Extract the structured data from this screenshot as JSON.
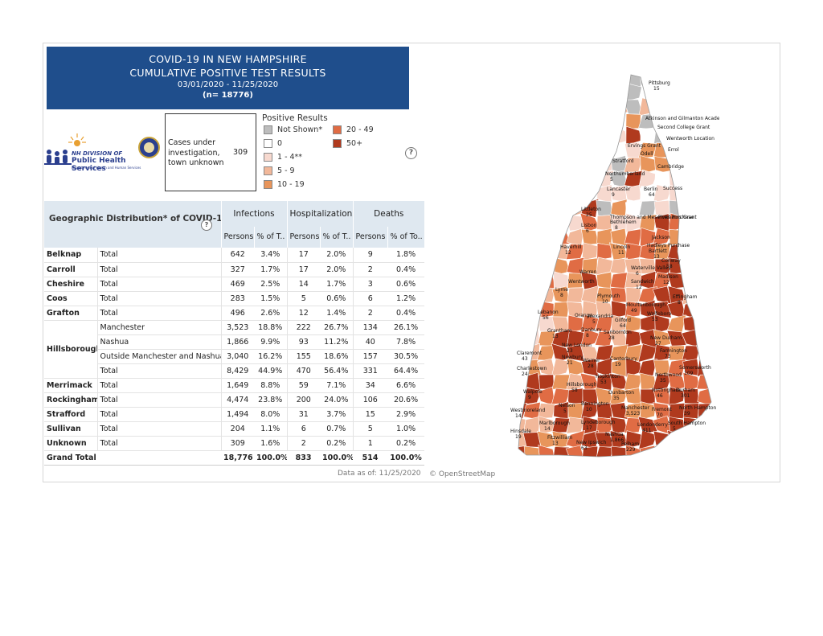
{
  "header": {
    "line1": "COVID-19 IN NEW HAMPSHIRE",
    "line2": "CUMULATIVE POSITIVE TEST RESULTS",
    "dates": "03/01/2020 - 11/25/2020",
    "n": "(n= 18776)"
  },
  "logo": {
    "org1": "NH DIVISION OF",
    "org2": "Public Health Services",
    "org3": "Department of Health and Human Services"
  },
  "cases_box": {
    "label": "Cases under investigation, town unknown",
    "value": "309"
  },
  "legend": {
    "title": "Positive Results",
    "items": [
      {
        "label": "Not Shown*",
        "color": "#bdbdbd"
      },
      {
        "label": "0",
        "color": "#ffffff"
      },
      {
        "label": "1 - 4**",
        "color": "#f7d9cf"
      },
      {
        "label": "5 - 9",
        "color": "#f2b89a"
      },
      {
        "label": "10 - 19",
        "color": "#e8955b"
      },
      {
        "label": "20 - 49",
        "color": "#e06c44"
      },
      {
        "label": "50+",
        "color": "#b03a1e"
      }
    ]
  },
  "help_icon": "?",
  "table": {
    "geo_header": "Geographic Distribution* of COVID-19",
    "groups": [
      "Infections",
      "Hospitalizations",
      "Deaths"
    ],
    "subheaders": [
      "Persons",
      "% of T..",
      "Persons",
      "% of T..",
      "Persons",
      "% of To.."
    ],
    "rows": [
      {
        "region": "Belknap",
        "sub": "Total",
        "v": [
          "642",
          "3.4%",
          "17",
          "2.0%",
          "9",
          "1.8%"
        ]
      },
      {
        "region": "Carroll",
        "sub": "Total",
        "v": [
          "327",
          "1.7%",
          "17",
          "2.0%",
          "2",
          "0.4%"
        ]
      },
      {
        "region": "Cheshire",
        "sub": "Total",
        "v": [
          "469",
          "2.5%",
          "14",
          "1.7%",
          "3",
          "0.6%"
        ]
      },
      {
        "region": "Coos",
        "sub": "Total",
        "v": [
          "283",
          "1.5%",
          "5",
          "0.6%",
          "6",
          "1.2%"
        ]
      },
      {
        "region": "Grafton",
        "sub": "Total",
        "v": [
          "496",
          "2.6%",
          "12",
          "1.4%",
          "2",
          "0.4%"
        ]
      },
      {
        "region": "Hillsborough",
        "sub": "Manchester",
        "v": [
          "3,523",
          "18.8%",
          "222",
          "26.7%",
          "134",
          "26.1%"
        ]
      },
      {
        "region": "",
        "sub": "Nashua",
        "v": [
          "1,866",
          "9.9%",
          "93",
          "11.2%",
          "40",
          "7.8%"
        ]
      },
      {
        "region": "",
        "sub": "Outside Manchester and Nashua",
        "v": [
          "3,040",
          "16.2%",
          "155",
          "18.6%",
          "157",
          "30.5%"
        ]
      },
      {
        "region": "",
        "sub": "Total",
        "v": [
          "8,429",
          "44.9%",
          "470",
          "56.4%",
          "331",
          "64.4%"
        ]
      },
      {
        "region": "Merrimack",
        "sub": "Total",
        "v": [
          "1,649",
          "8.8%",
          "59",
          "7.1%",
          "34",
          "6.6%"
        ]
      },
      {
        "region": "Rockingham",
        "sub": "Total",
        "v": [
          "4,474",
          "23.8%",
          "200",
          "24.0%",
          "106",
          "20.6%"
        ]
      },
      {
        "region": "Strafford",
        "sub": "Total",
        "v": [
          "1,494",
          "8.0%",
          "31",
          "3.7%",
          "15",
          "2.9%"
        ]
      },
      {
        "region": "Sullivan",
        "sub": "Total",
        "v": [
          "204",
          "1.1%",
          "6",
          "0.7%",
          "5",
          "1.0%"
        ]
      },
      {
        "region": "Unknown",
        "sub": "Total",
        "v": [
          "309",
          "1.6%",
          "2",
          "0.2%",
          "1",
          "0.2%"
        ]
      }
    ],
    "grand_total": {
      "label": "Grand Total",
      "v": [
        "18,776",
        "100.0%",
        "833",
        "100.0%",
        "514",
        "100.0%"
      ]
    }
  },
  "footer": {
    "as_of": "Data as of:  11/25/2020",
    "osm": "© OpenStreetMap"
  },
  "map_labels": [
    {
      "name": "Pittsburg",
      "val": "15"
    },
    {
      "name": "Atkinson and Gilmanton Academy Grant"
    },
    {
      "name": "Second College Grant"
    },
    {
      "name": "Wentworth Location"
    },
    {
      "name": "Errol"
    },
    {
      "name": "Ervings Grant"
    },
    {
      "name": "Odell"
    },
    {
      "name": "Stratford"
    },
    {
      "name": "Cambridge"
    },
    {
      "name": "Northumberland",
      "val": "5"
    },
    {
      "name": "Lancaster",
      "val": "9"
    },
    {
      "name": "Berlin",
      "val": "64"
    },
    {
      "name": "Success"
    },
    {
      "name": "Littleton",
      "val": "25"
    },
    {
      "name": "Thompson and Meserves Purchase"
    },
    {
      "name": "Bethlehem",
      "val": "8"
    },
    {
      "name": "Pinkhams Grant"
    },
    {
      "name": "Lisbon",
      "val": "6"
    },
    {
      "name": "Jackson"
    },
    {
      "name": "Hadleys Purchase"
    },
    {
      "name": "Haverhill",
      "val": "12"
    },
    {
      "name": "Lincoln",
      "val": "11"
    },
    {
      "name": "Bartlett",
      "val": "13"
    },
    {
      "name": "Conway",
      "val": "58"
    },
    {
      "name": "Warren"
    },
    {
      "name": "Waterville Valley",
      "val": "6"
    },
    {
      "name": "Madison",
      "val": "12"
    },
    {
      "name": "Wentworth"
    },
    {
      "name": "Sandwich",
      "val": "12"
    },
    {
      "name": "Lyme",
      "val": "8"
    },
    {
      "name": "Plymouth",
      "val": "10"
    },
    {
      "name": "Effingham",
      "val": "8"
    },
    {
      "name": "Moultonborough",
      "val": "49"
    },
    {
      "name": "Lebanon",
      "val": "56"
    },
    {
      "name": "Orange"
    },
    {
      "name": "Alexandria",
      "val": "5"
    },
    {
      "name": "Wolfeboro",
      "val": "53"
    },
    {
      "name": "Gilford",
      "val": "64"
    },
    {
      "name": "Grantham",
      "val": "13"
    },
    {
      "name": "Danbury",
      "val": "8"
    },
    {
      "name": "Sanbornton",
      "val": "28"
    },
    {
      "name": "New Durham",
      "val": "27"
    },
    {
      "name": "New London",
      "val": "23"
    },
    {
      "name": "Claremont",
      "val": "43"
    },
    {
      "name": "Farmington",
      "val": "73"
    },
    {
      "name": "Newbury",
      "val": "21"
    },
    {
      "name": "Warner",
      "val": "28"
    },
    {
      "name": "Canterbury",
      "val": "19"
    },
    {
      "name": "Charlestown",
      "val": "24"
    },
    {
      "name": "Somersworth",
      "val": "109"
    },
    {
      "name": "Northwood",
      "val": "35"
    },
    {
      "name": "Hillsborough",
      "val": "58"
    },
    {
      "name": "Hopkinton",
      "val": "53"
    },
    {
      "name": "Walpole",
      "val": "9"
    },
    {
      "name": "Dunbarton",
      "val": "35"
    },
    {
      "name": "Nottingham",
      "val": "46"
    },
    {
      "name": "Durham",
      "val": "301"
    },
    {
      "name": "Westmoreland",
      "val": "14"
    },
    {
      "name": "Nelson",
      "val": "5"
    },
    {
      "name": "Bennington",
      "val": "10"
    },
    {
      "name": "Manchester",
      "val": "3,523"
    },
    {
      "name": "Fremont",
      "val": "70"
    },
    {
      "name": "North Hampton",
      "val": "39"
    },
    {
      "name": "Marlborough",
      "val": "14"
    },
    {
      "name": "Lyndeborough",
      "val": "17"
    },
    {
      "name": "Londonderry",
      "val": "411"
    },
    {
      "name": "South Hampton",
      "val": "5"
    },
    {
      "name": "Hinsdale",
      "val": "19"
    },
    {
      "name": "Fitzwilliam",
      "val": "13"
    },
    {
      "name": "Nashua",
      "val": "1,866"
    },
    {
      "name": "New Ipswich",
      "val": "63"
    },
    {
      "name": "Pelham",
      "val": "229"
    }
  ]
}
